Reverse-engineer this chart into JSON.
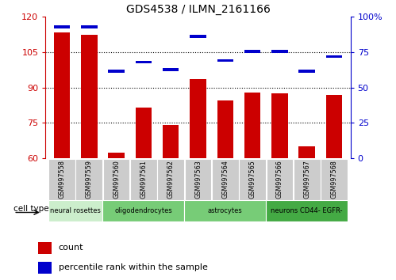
{
  "title": "GDS4538 / ILMN_2161166",
  "samples": [
    "GSM997558",
    "GSM997559",
    "GSM997560",
    "GSM997561",
    "GSM997562",
    "GSM997563",
    "GSM997564",
    "GSM997565",
    "GSM997566",
    "GSM997567",
    "GSM997568"
  ],
  "counts": [
    113.5,
    112.5,
    62.5,
    81.5,
    74.0,
    93.5,
    84.5,
    88.0,
    87.5,
    65.0,
    87.0
  ],
  "percentile_vals": [
    93.0,
    93.0,
    61.5,
    68.0,
    62.5,
    86.0,
    69.0,
    75.5,
    75.5,
    61.5,
    72.0
  ],
  "ymin": 60,
  "ymax": 120,
  "yticks_left": [
    60,
    75,
    90,
    105,
    120
  ],
  "yticks_right": [
    0,
    25,
    50,
    75,
    100
  ],
  "right_axis_labels": [
    "0",
    "25",
    "50",
    "75",
    "100%"
  ],
  "groups": [
    {
      "label": "neural rosettes",
      "indices": [
        0,
        1
      ],
      "color": "#cceecc"
    },
    {
      "label": "oligodendrocytes",
      "indices": [
        2,
        3,
        4
      ],
      "color": "#77cc77"
    },
    {
      "label": "astrocytes",
      "indices": [
        5,
        6,
        7
      ],
      "color": "#77cc77"
    },
    {
      "label": "neurons CD44- EGFR-",
      "indices": [
        8,
        9,
        10
      ],
      "color": "#44aa44"
    }
  ],
  "bar_color": "#cc0000",
  "dot_color": "#0000cc",
  "left_axis_color": "#cc0000",
  "right_axis_color": "#0000cc",
  "tickbox_color": "#cccccc"
}
